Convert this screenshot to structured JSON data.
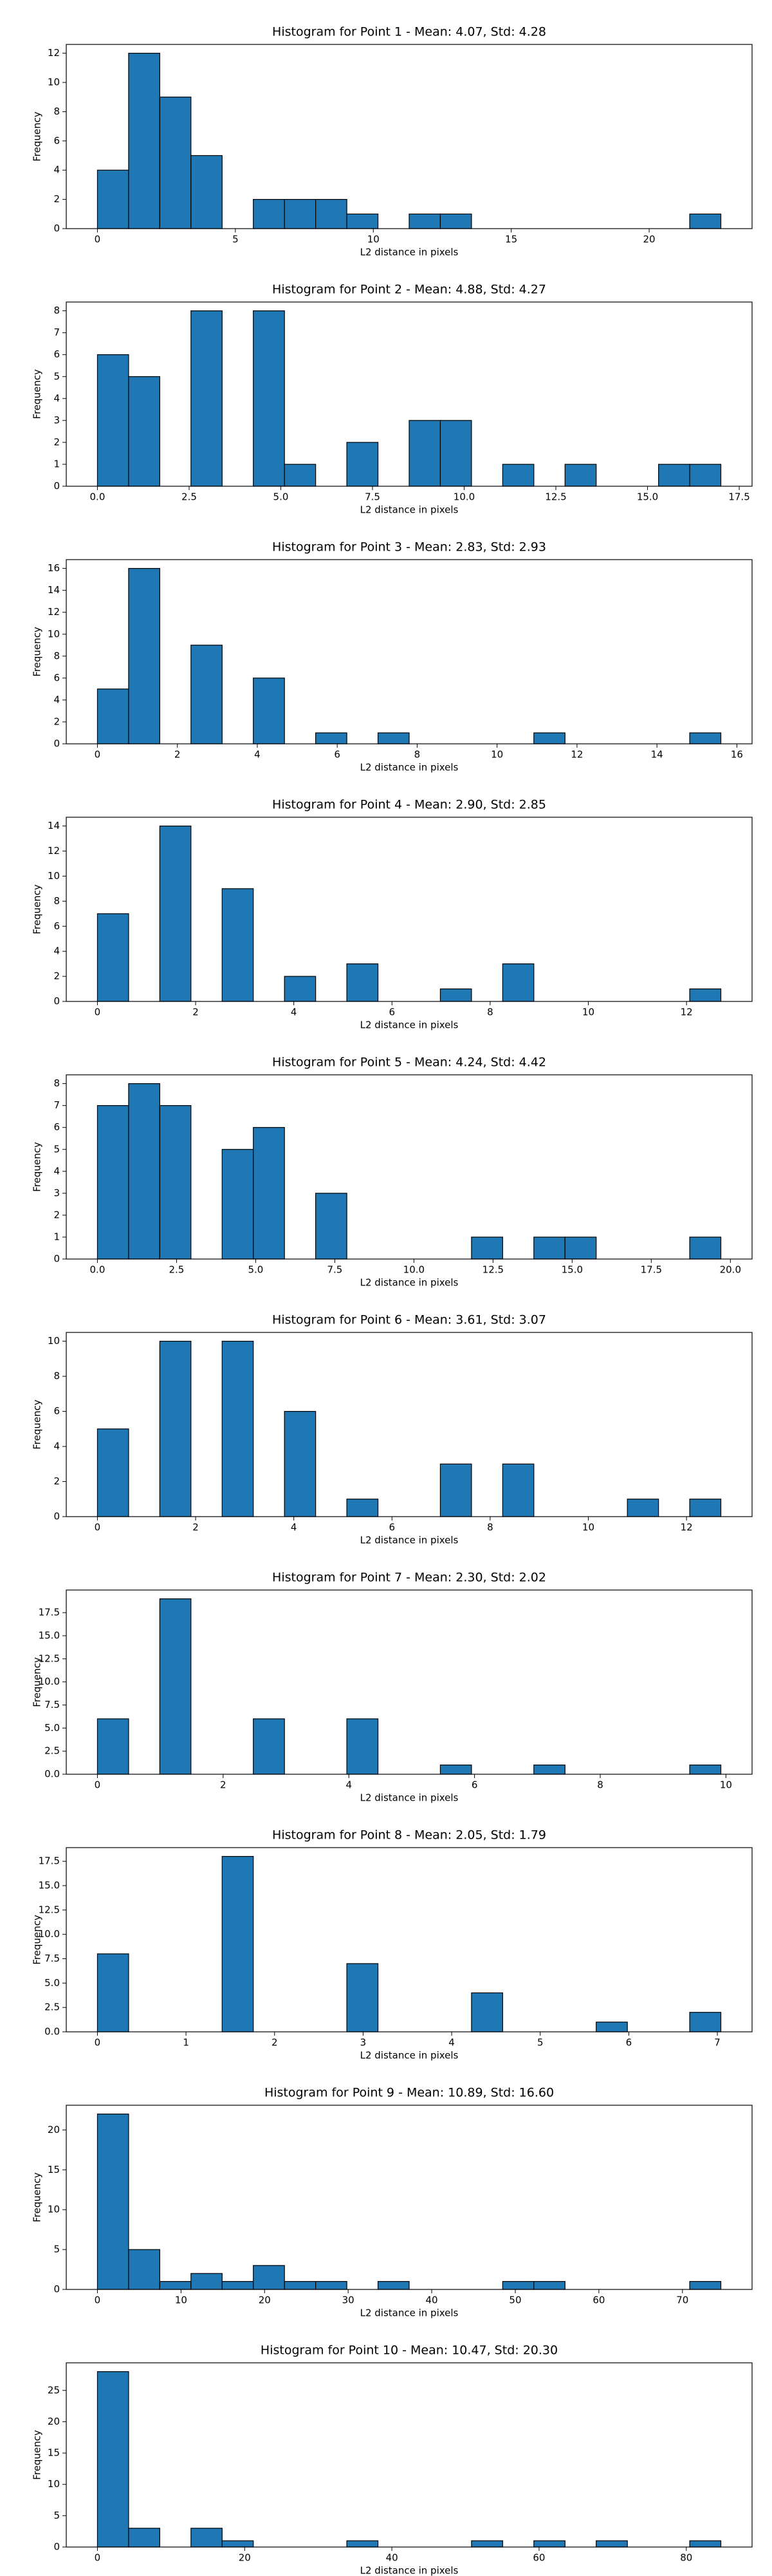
{
  "chart_data": [
    {
      "type": "histogram",
      "title": "Histogram for Point 1 - Mean: 4.07, Std: 4.28",
      "xlabel": "L2 distance in pixels",
      "ylabel": "Frequency",
      "color": "#1f77b4",
      "edgecolor": "#000000",
      "bins": [
        0,
        1.13,
        2.26,
        3.39,
        4.52,
        5.65,
        6.78,
        7.91,
        9.04,
        10.17,
        11.3,
        12.43,
        13.56,
        14.69,
        15.82,
        16.95,
        18.08,
        19.21,
        20.34,
        21.47,
        22.6
      ],
      "values": [
        4,
        12,
        9,
        5,
        0,
        2,
        2,
        2,
        1,
        0,
        1,
        1,
        0,
        0,
        0,
        0,
        0,
        0,
        0,
        1
      ],
      "xlim": [
        -1.13,
        23.73
      ],
      "ylim": [
        0,
        12.6
      ],
      "xticks": [
        0,
        5,
        10,
        15,
        20
      ],
      "yticks": [
        0,
        2,
        4,
        6,
        8,
        10,
        12
      ]
    },
    {
      "type": "histogram",
      "title": "Histogram for Point 2 - Mean: 4.88, Std: 4.27",
      "xlabel": "L2 distance in pixels",
      "ylabel": "Frequency",
      "color": "#1f77b4",
      "edgecolor": "#000000",
      "bins": [
        0,
        0.85,
        1.7,
        2.55,
        3.4,
        4.25,
        5.1,
        5.95,
        6.8,
        7.65,
        8.5,
        9.35,
        10.2,
        11.05,
        11.9,
        12.75,
        13.6,
        14.45,
        15.3,
        16.15,
        17
      ],
      "values": [
        6,
        5,
        0,
        8,
        0,
        8,
        1,
        0,
        2,
        0,
        3,
        3,
        0,
        1,
        0,
        1,
        0,
        0,
        1,
        1
      ],
      "xlim": [
        -0.85,
        17.85
      ],
      "ylim": [
        0,
        8.4
      ],
      "xticks": [
        {
          "value": 0,
          "label": "0.0"
        },
        2.5,
        {
          "value": 5,
          "label": "5.0"
        },
        7.5,
        {
          "value": 10,
          "label": "10.0"
        },
        12.5,
        {
          "value": 15,
          "label": "15.0"
        },
        17.5
      ],
      "yticks": [
        0,
        1,
        2,
        3,
        4,
        5,
        6,
        7,
        8
      ]
    },
    {
      "type": "histogram",
      "title": "Histogram for Point 3 - Mean: 2.83, Std: 2.93",
      "xlabel": "L2 distance in pixels",
      "ylabel": "Frequency",
      "color": "#1f77b4",
      "edgecolor": "#000000",
      "bins": [
        0,
        0.78,
        1.56,
        2.34,
        3.12,
        3.9,
        4.68,
        5.46,
        6.24,
        7.02,
        7.8,
        8.58,
        9.36,
        10.14,
        10.92,
        11.7,
        12.48,
        13.26,
        14.04,
        14.82,
        15.6
      ],
      "values": [
        5,
        16,
        0,
        9,
        0,
        6,
        0,
        1,
        0,
        1,
        0,
        0,
        0,
        0,
        1,
        0,
        0,
        0,
        0,
        1
      ],
      "xlim": [
        -0.78,
        16.38
      ],
      "ylim": [
        0,
        16.8
      ],
      "xticks": [
        0,
        2,
        4,
        6,
        8,
        10,
        12,
        14,
        16
      ],
      "yticks": [
        0,
        2,
        4,
        6,
        8,
        10,
        12,
        14,
        16
      ]
    },
    {
      "type": "histogram",
      "title": "Histogram for Point 4 - Mean: 2.90, Std: 2.85",
      "xlabel": "L2 distance in pixels",
      "ylabel": "Frequency",
      "color": "#1f77b4",
      "edgecolor": "#000000",
      "bins": [
        0,
        0.635,
        1.27,
        1.905,
        2.54,
        3.175,
        3.81,
        4.445,
        5.08,
        5.715,
        6.35,
        6.985,
        7.62,
        8.255,
        8.89,
        9.525,
        10.16,
        10.795,
        11.43,
        12.065,
        12.7
      ],
      "values": [
        7,
        0,
        14,
        0,
        9,
        0,
        2,
        0,
        3,
        0,
        0,
        1,
        0,
        3,
        0,
        0,
        0,
        0,
        0,
        1
      ],
      "xlim": [
        -0.635,
        13.335
      ],
      "ylim": [
        0,
        14.7
      ],
      "xticks": [
        0,
        2,
        4,
        6,
        8,
        10,
        12
      ],
      "yticks": [
        0,
        2,
        4,
        6,
        8,
        10,
        12,
        14
      ]
    },
    {
      "type": "histogram",
      "title": "Histogram for Point 5 - Mean: 4.24, Std: 4.42",
      "xlabel": "L2 distance in pixels",
      "ylabel": "Frequency",
      "color": "#1f77b4",
      "edgecolor": "#000000",
      "bins": [
        0,
        0.985,
        1.97,
        2.955,
        3.94,
        4.925,
        5.91,
        6.895,
        7.88,
        8.865,
        9.85,
        10.835,
        11.82,
        12.805,
        13.79,
        14.775,
        15.76,
        16.745,
        17.73,
        18.715,
        19.7
      ],
      "values": [
        7,
        8,
        7,
        0,
        5,
        6,
        0,
        3,
        0,
        0,
        0,
        0,
        1,
        0,
        1,
        1,
        0,
        0,
        0,
        1
      ],
      "xlim": [
        -0.985,
        20.685
      ],
      "ylim": [
        0,
        8.4
      ],
      "xticks": [
        {
          "value": 0,
          "label": "0.0"
        },
        2.5,
        {
          "value": 5,
          "label": "5.0"
        },
        7.5,
        {
          "value": 10,
          "label": "10.0"
        },
        12.5,
        {
          "value": 15,
          "label": "15.0"
        },
        17.5,
        {
          "value": 20,
          "label": "20.0"
        }
      ],
      "yticks": [
        0,
        1,
        2,
        3,
        4,
        5,
        6,
        7,
        8
      ]
    },
    {
      "type": "histogram",
      "title": "Histogram for Point 6 - Mean: 3.61, Std: 3.07",
      "xlabel": "L2 distance in pixels",
      "ylabel": "Frequency",
      "color": "#1f77b4",
      "edgecolor": "#000000",
      "bins": [
        0,
        0.635,
        1.27,
        1.905,
        2.54,
        3.175,
        3.81,
        4.445,
        5.08,
        5.715,
        6.35,
        6.985,
        7.62,
        8.255,
        8.89,
        9.525,
        10.16,
        10.795,
        11.43,
        12.065,
        12.7
      ],
      "values": [
        5,
        0,
        10,
        0,
        10,
        0,
        6,
        0,
        1,
        0,
        0,
        3,
        0,
        3,
        0,
        0,
        0,
        1,
        0,
        1
      ],
      "xlim": [
        -0.635,
        13.335
      ],
      "ylim": [
        0,
        10.5
      ],
      "xticks": [
        0,
        2,
        4,
        6,
        8,
        10,
        12
      ],
      "yticks": [
        0,
        2,
        4,
        6,
        8,
        10
      ]
    },
    {
      "type": "histogram",
      "title": "Histogram for Point 7 - Mean: 2.30, Std: 2.02",
      "xlabel": "L2 distance in pixels",
      "ylabel": "Frequency",
      "color": "#1f77b4",
      "edgecolor": "#000000",
      "bins": [
        0,
        0.496,
        0.992,
        1.488,
        1.984,
        2.48,
        2.976,
        3.472,
        3.968,
        4.464,
        4.96,
        5.456,
        5.952,
        6.448,
        6.944,
        7.44,
        7.936,
        8.432,
        8.928,
        9.424,
        9.92
      ],
      "values": [
        6,
        0,
        19,
        0,
        0,
        6,
        0,
        0,
        6,
        0,
        0,
        1,
        0,
        0,
        1,
        0,
        0,
        0,
        0,
        1
      ],
      "xlim": [
        -0.496,
        10.416
      ],
      "ylim": [
        0,
        19.95
      ],
      "xticks": [
        0,
        2,
        4,
        6,
        8,
        10
      ],
      "yticks": [
        {
          "value": 0,
          "label": "0.0"
        },
        2.5,
        {
          "value": 5,
          "label": "5.0"
        },
        7.5,
        {
          "value": 10,
          "label": "10.0"
        },
        12.5,
        {
          "value": 15,
          "label": "15.0"
        },
        17.5
      ]
    },
    {
      "type": "histogram",
      "title": "Histogram for Point 8 - Mean: 2.05, Std: 1.79",
      "xlabel": "L2 distance in pixels",
      "ylabel": "Frequency",
      "color": "#1f77b4",
      "edgecolor": "#000000",
      "bins": [
        0,
        0.352,
        0.704,
        1.056,
        1.408,
        1.76,
        2.112,
        2.464,
        2.816,
        3.168,
        3.52,
        3.872,
        4.224,
        4.576,
        4.928,
        5.28,
        5.632,
        5.984,
        6.336,
        6.688,
        7.04
      ],
      "values": [
        8,
        0,
        0,
        0,
        18,
        0,
        0,
        0,
        7,
        0,
        0,
        0,
        4,
        0,
        0,
        0,
        1,
        0,
        0,
        2
      ],
      "xlim": [
        -0.352,
        7.392
      ],
      "ylim": [
        0,
        18.9
      ],
      "xticks": [
        0,
        1,
        2,
        3,
        4,
        5,
        6,
        7
      ],
      "yticks": [
        {
          "value": 0,
          "label": "0.0"
        },
        2.5,
        {
          "value": 5,
          "label": "5.0"
        },
        7.5,
        {
          "value": 10,
          "label": "10.0"
        },
        12.5,
        {
          "value": 15,
          "label": "15.0"
        },
        17.5
      ]
    },
    {
      "type": "histogram",
      "title": "Histogram for Point 9 - Mean: 10.89, Std: 16.60",
      "xlabel": "L2 distance in pixels",
      "ylabel": "Frequency",
      "color": "#1f77b4",
      "edgecolor": "#000000",
      "bins": [
        0,
        3.73,
        7.46,
        11.19,
        14.92,
        18.65,
        22.38,
        26.11,
        29.84,
        33.57,
        37.3,
        41.03,
        44.76,
        48.49,
        52.22,
        55.95,
        59.68,
        63.41,
        67.14,
        70.87,
        74.6
      ],
      "values": [
        22,
        5,
        1,
        2,
        1,
        3,
        1,
        1,
        0,
        1,
        0,
        0,
        0,
        1,
        1,
        0,
        0,
        0,
        0,
        1
      ],
      "xlim": [
        -3.73,
        78.33
      ],
      "ylim": [
        0,
        23.1
      ],
      "xticks": [
        0,
        10,
        20,
        30,
        40,
        50,
        60,
        70
      ],
      "yticks": [
        0,
        5,
        10,
        15,
        20
      ]
    },
    {
      "type": "histogram",
      "title": "Histogram for Point 10 - Mean: 10.47, Std: 20.30",
      "xlabel": "L2 distance in pixels",
      "ylabel": "Frequency",
      "color": "#1f77b4",
      "edgecolor": "#000000",
      "bins": [
        0,
        4.235,
        8.47,
        12.705,
        16.94,
        21.175,
        25.41,
        29.645,
        33.88,
        38.115,
        42.35,
        46.585,
        50.82,
        55.055,
        59.29,
        63.525,
        67.76,
        71.995,
        76.23,
        80.465,
        84.7
      ],
      "values": [
        28,
        3,
        0,
        3,
        1,
        0,
        0,
        0,
        1,
        0,
        0,
        0,
        1,
        0,
        1,
        0,
        1,
        0,
        0,
        1
      ],
      "xlim": [
        -4.235,
        88.935
      ],
      "ylim": [
        0,
        29.4
      ],
      "xticks": [
        0,
        20,
        40,
        60,
        80
      ],
      "yticks": [
        0,
        5,
        10,
        15,
        20,
        25
      ]
    }
  ]
}
